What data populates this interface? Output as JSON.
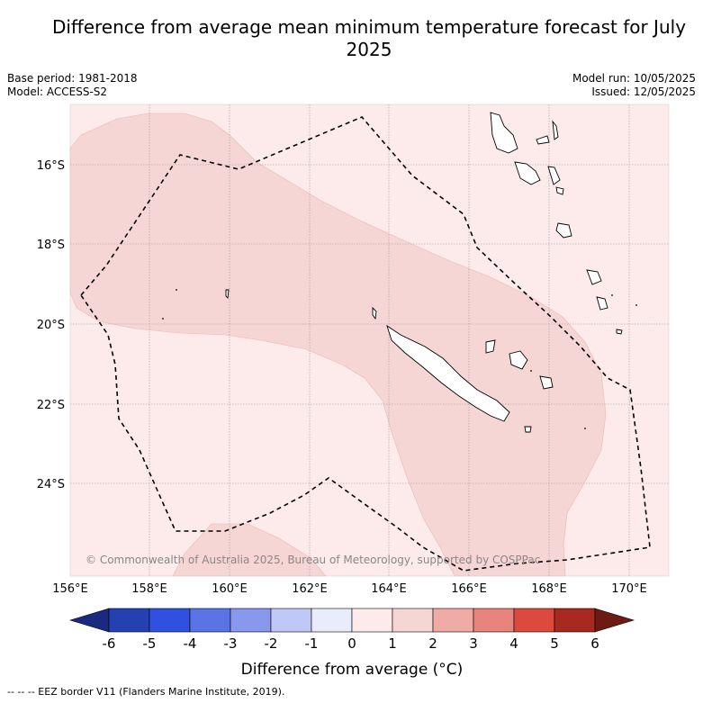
{
  "title": "Difference from average mean minimum temperature forecast for July 2025",
  "meta": {
    "base_period": "Base period: 1981-2018",
    "model": "Model: ACCESS-S2",
    "model_run": "Model run: 10/05/2025",
    "issued": "Issued: 12/05/2025"
  },
  "map": {
    "lon_ticks": [
      "156°E",
      "158°E",
      "160°E",
      "162°E",
      "164°E",
      "166°E",
      "168°E",
      "170°E"
    ],
    "lat_ticks": [
      "16°S",
      "18°S",
      "20°S",
      "22°S",
      "24°S"
    ],
    "copyright": "© Commonwealth of Australia 2025, Bureau of Meteorology, supported by COSPPac",
    "colors": {
      "band_0_1": "#fcebea",
      "band_1_2": "#f5d6d4",
      "grid": "#999999"
    }
  },
  "colorbar": {
    "ticks": [
      "-6",
      "-5",
      "-4",
      "-3",
      "-2",
      "-1",
      "0",
      "1",
      "2",
      "3",
      "4",
      "5",
      "6"
    ],
    "colors": [
      "#1a2a80",
      "#2540b0",
      "#3050e0",
      "#5a74e6",
      "#8898ec",
      "#c0c8f6",
      "#e8ecfb",
      "#fcebea",
      "#f5d6d4",
      "#efaba6",
      "#e8847c",
      "#dc4a3e",
      "#a8291f",
      "#6e1a14"
    ],
    "label": "Difference from average (°C)"
  },
  "footer": "-- -- -- EEZ border V11 (Flanders Marine Institute, 2019)."
}
